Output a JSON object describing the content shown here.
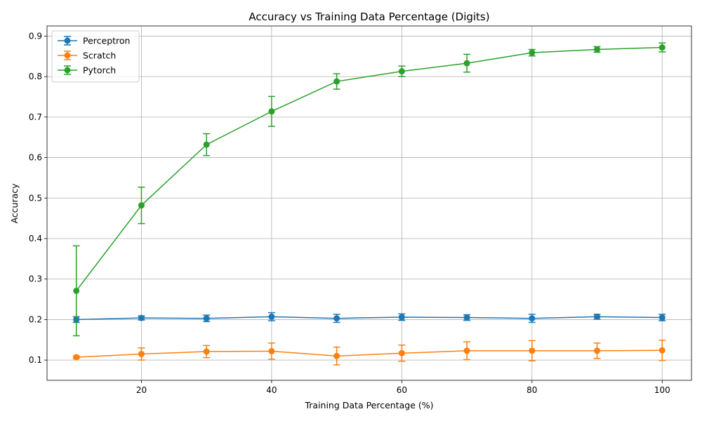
{
  "chart_data": {
    "type": "line",
    "title": "Accuracy vs Training Data Percentage (Digits)",
    "xlabel": "Training Data Percentage (%)",
    "ylabel": "Accuracy",
    "x": [
      10,
      20,
      30,
      40,
      50,
      60,
      70,
      80,
      90,
      100
    ],
    "xlim": [
      5.5,
      104.5
    ],
    "ylim": [
      0.05,
      0.925
    ],
    "xticks": [
      20,
      40,
      60,
      80,
      100
    ],
    "yticks": [
      0.1,
      0.2,
      0.3,
      0.4,
      0.5,
      0.6,
      0.7,
      0.8,
      0.9
    ],
    "xtick_labels": [
      "20",
      "40",
      "60",
      "80",
      "100"
    ],
    "ytick_labels": [
      "0.1",
      "0.2",
      "0.3",
      "0.4",
      "0.5",
      "0.6",
      "0.7",
      "0.8",
      "0.9"
    ],
    "grid": true,
    "legend_position": "top-left",
    "series": [
      {
        "name": "Perceptron",
        "color": "#1f77b4",
        "values": [
          0.2,
          0.204,
          0.203,
          0.207,
          0.203,
          0.206,
          0.205,
          0.203,
          0.207,
          0.205
        ],
        "errors": [
          0.007,
          0.005,
          0.008,
          0.01,
          0.01,
          0.008,
          0.007,
          0.01,
          0.006,
          0.008
        ]
      },
      {
        "name": "Scratch",
        "color": "#ff7f0e",
        "values": [
          0.107,
          0.115,
          0.121,
          0.122,
          0.11,
          0.117,
          0.123,
          0.123,
          0.123,
          0.124
        ],
        "errors": [
          0.003,
          0.015,
          0.015,
          0.02,
          0.022,
          0.02,
          0.022,
          0.025,
          0.019,
          0.025
        ]
      },
      {
        "name": "Pytorch",
        "color": "#2ca02c",
        "values": [
          0.271,
          0.482,
          0.632,
          0.714,
          0.788,
          0.813,
          0.833,
          0.859,
          0.867,
          0.872
        ],
        "errors": [
          0.111,
          0.045,
          0.027,
          0.037,
          0.019,
          0.013,
          0.022,
          0.008,
          0.007,
          0.011
        ]
      }
    ]
  }
}
